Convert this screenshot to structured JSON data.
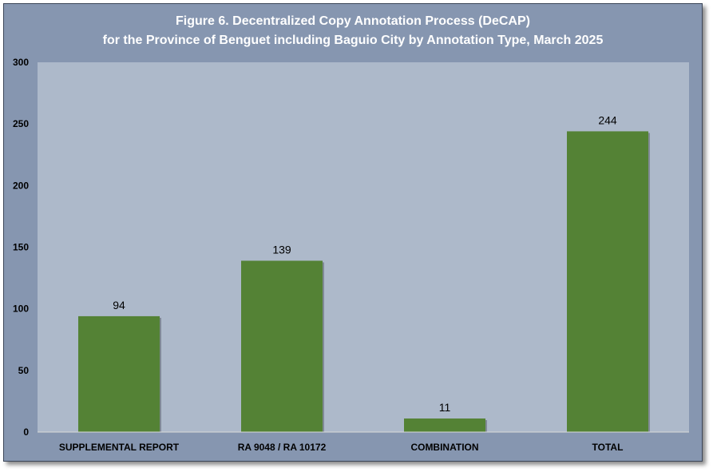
{
  "chart_data": {
    "type": "bar",
    "title": "Figure 6. Decentralized Copy Annotation Process (DeCAP)",
    "subtitle": "for the Province of Benguet including Baguio City by Annotation Type, March 2025",
    "categories": [
      "SUPPLEMENTAL REPORT",
      "RA 9048 / RA 10172",
      "COMBINATION",
      "TOTAL"
    ],
    "values": [
      94,
      139,
      11,
      244
    ],
    "ylim": [
      0,
      300
    ],
    "yticks": [
      0,
      50,
      100,
      150,
      200,
      250,
      300
    ],
    "xlabel": "",
    "ylabel": "",
    "data_labels": true,
    "grid": false,
    "legend": "none",
    "colors": {
      "bar": "#548235",
      "plot_area": "#adb9ca",
      "frame": "#8696b0"
    }
  }
}
